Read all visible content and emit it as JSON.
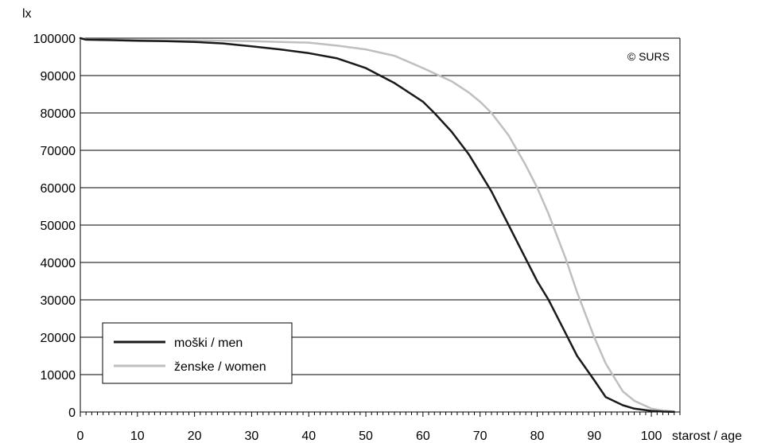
{
  "chart_data": {
    "type": "line",
    "ylabel": "lx",
    "xlabel": "starost / age",
    "copyright": "© SURS",
    "xlim": [
      0,
      105
    ],
    "ylim": [
      0,
      100000
    ],
    "x_ticks": [
      0,
      10,
      20,
      30,
      40,
      50,
      60,
      70,
      80,
      90,
      100
    ],
    "y_ticks": [
      0,
      10000,
      20000,
      30000,
      40000,
      50000,
      60000,
      70000,
      80000,
      90000,
      100000
    ],
    "grid": true,
    "legend_position": "bottom-left",
    "series": [
      {
        "name": "moški / men",
        "color": "#1a1a1a",
        "x": [
          0,
          1,
          5,
          10,
          15,
          20,
          25,
          30,
          35,
          40,
          45,
          50,
          55,
          60,
          62,
          65,
          68,
          70,
          72,
          75,
          78,
          80,
          82,
          85,
          87,
          90,
          92,
          95,
          97,
          100,
          102,
          104
        ],
        "y": [
          100000,
          99600,
          99500,
          99300,
          99200,
          99000,
          98600,
          97800,
          97000,
          96000,
          94600,
          92000,
          88000,
          83000,
          80000,
          75000,
          69000,
          64000,
          59000,
          50000,
          41000,
          35000,
          30000,
          21000,
          15000,
          8500,
          4000,
          1800,
          900,
          300,
          100,
          20
        ]
      },
      {
        "name": "ženske / women",
        "color": "#bfbfbf",
        "x": [
          0,
          1,
          5,
          10,
          15,
          20,
          25,
          30,
          35,
          40,
          45,
          50,
          55,
          60,
          65,
          68,
          70,
          72,
          75,
          78,
          80,
          82,
          85,
          87,
          90,
          92,
          95,
          97,
          100,
          102,
          104
        ],
        "y": [
          100000,
          99700,
          99600,
          99500,
          99400,
          99400,
          99300,
          99200,
          99000,
          98800,
          98000,
          97000,
          95300,
          92000,
          88500,
          85500,
          83000,
          80000,
          74000,
          66000,
          60000,
          53000,
          41000,
          32000,
          20000,
          13000,
          5500,
          3000,
          900,
          400,
          100
        ]
      }
    ]
  }
}
